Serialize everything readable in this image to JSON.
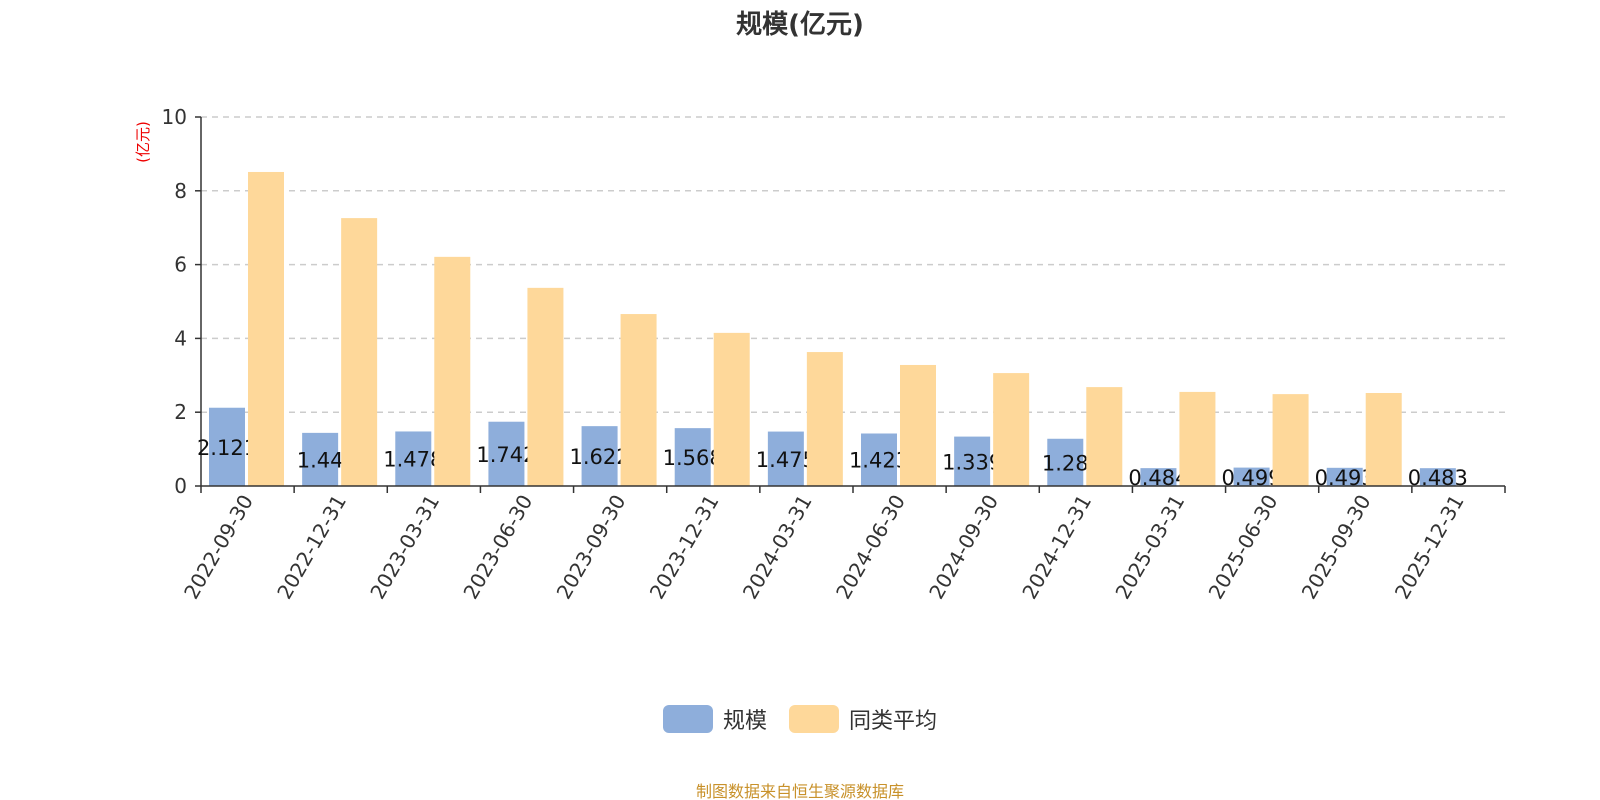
{
  "chart_data": {
    "type": "bar",
    "title": "规模(亿元)",
    "ylabel": "(亿元)",
    "ylim": [
      0,
      10
    ],
    "yticks": [
      0,
      2,
      4,
      6,
      8,
      10
    ],
    "grid": true,
    "legend_position": "bottom",
    "categories": [
      "2022-09-30",
      "2022-12-31",
      "2023-03-31",
      "2023-06-30",
      "2023-09-30",
      "2023-12-31",
      "2024-03-31",
      "2024-06-30",
      "2024-09-30",
      "2024-12-31",
      "2025-03-31",
      "2025-06-30",
      "2025-09-30",
      "2025-12-31"
    ],
    "series": [
      {
        "name": "规模",
        "color": "#8eaedb",
        "values": [
          2.121,
          1.44,
          1.478,
          1.742,
          1.622,
          1.568,
          1.475,
          1.423,
          1.339,
          1.28,
          0.484,
          0.499,
          0.493,
          0.483
        ],
        "labels": [
          "2.121",
          "1.44",
          "1.478",
          "1.742",
          "1.622",
          "1.568",
          "1.475",
          "1.423",
          "1.339",
          "1.28",
          "0.484",
          "0.499",
          "0.493",
          "0.483"
        ]
      },
      {
        "name": "同类平均",
        "color": "#fed89a",
        "values": [
          8.51,
          7.26,
          6.21,
          5.37,
          4.66,
          4.15,
          3.63,
          3.28,
          3.06,
          2.68,
          2.55,
          2.49,
          2.52,
          null
        ]
      }
    ]
  },
  "footer": {
    "source": "制图数据来自恒生聚源数据库"
  }
}
